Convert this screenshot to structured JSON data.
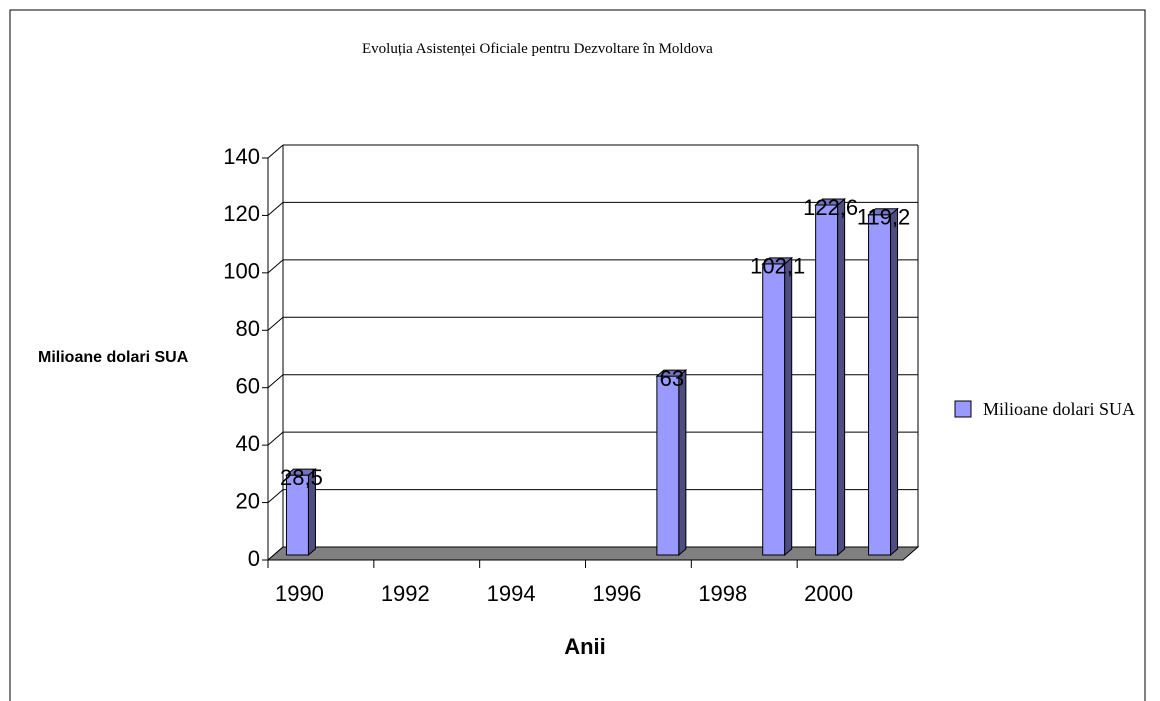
{
  "chart_data": {
    "type": "bar",
    "title": "Evoluția Asistenței Oficiale pentru Dezvoltare în Moldova",
    "ylabel": "Milioane dolari SUA",
    "xlabel": "Anii",
    "categories": [
      "1990",
      null,
      "1992",
      null,
      "1994",
      null,
      "1996",
      null,
      "1998",
      null,
      "2000",
      null
    ],
    "series": [
      {
        "name": "Milioane dolari SUA",
        "color": "#9999ff",
        "values": [
          28.5,
          null,
          null,
          null,
          null,
          null,
          null,
          63,
          null,
          102.1,
          122.6,
          119.2
        ],
        "value_labels": [
          "28,5",
          null,
          null,
          null,
          null,
          null,
          null,
          "63",
          null,
          "102,1",
          "122,6",
          "119,2"
        ]
      }
    ],
    "ylim": [
      0,
      140
    ],
    "yticks": [
      0,
      20,
      40,
      60,
      80,
      100,
      120,
      140
    ],
    "grid": true,
    "legend": "right"
  }
}
